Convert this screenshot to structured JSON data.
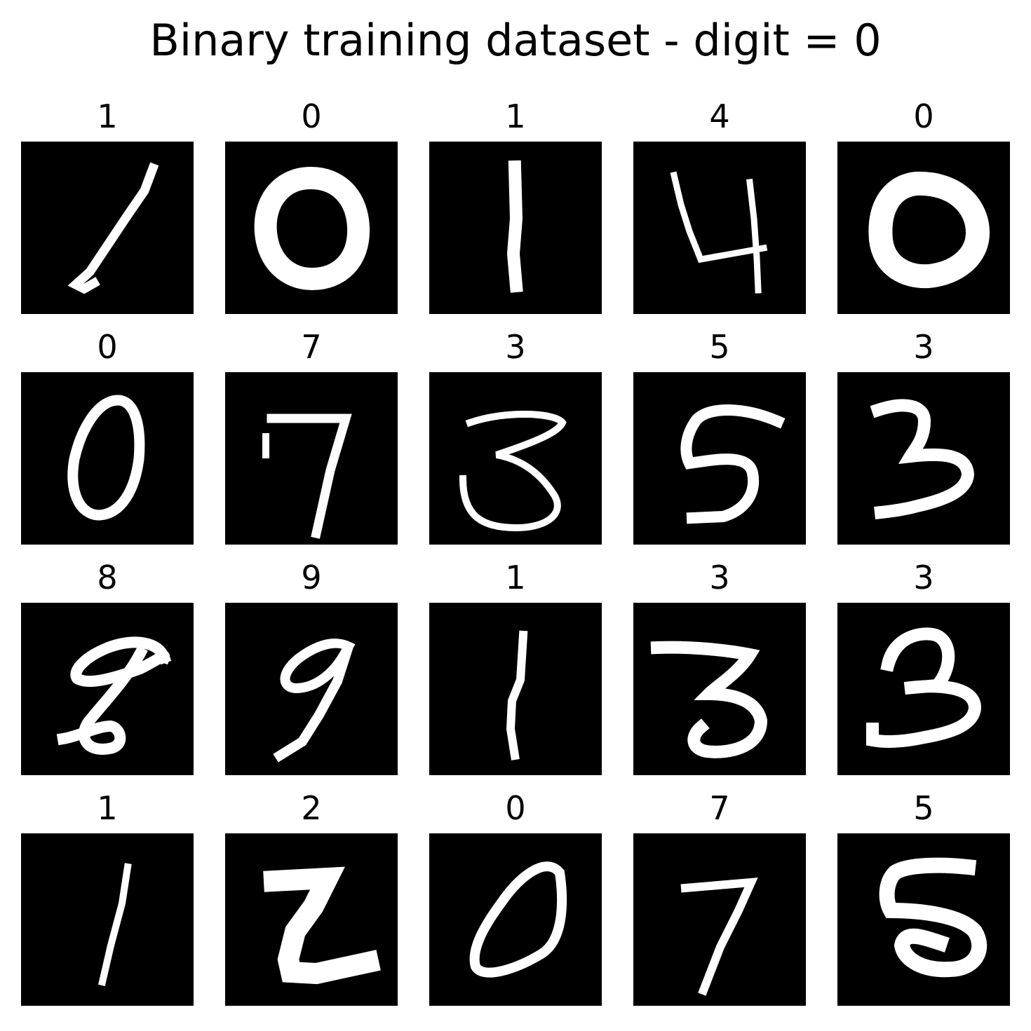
{
  "figure": {
    "title": "Binary training dataset - digit = 0"
  },
  "colors": {
    "background": "#ffffff",
    "image_background": "#000000",
    "stroke": "#ffffff"
  },
  "samples": [
    {
      "label": "1",
      "digit_icon": "handwritten-1-icon"
    },
    {
      "label": "0",
      "digit_icon": "handwritten-0-icon"
    },
    {
      "label": "1",
      "digit_icon": "handwritten-1-icon"
    },
    {
      "label": "4",
      "digit_icon": "handwritten-4-icon"
    },
    {
      "label": "0",
      "digit_icon": "handwritten-0-icon"
    },
    {
      "label": "0",
      "digit_icon": "handwritten-0-icon"
    },
    {
      "label": "7",
      "digit_icon": "handwritten-7-icon"
    },
    {
      "label": "3",
      "digit_icon": "handwritten-3-icon"
    },
    {
      "label": "5",
      "digit_icon": "handwritten-5-icon"
    },
    {
      "label": "3",
      "digit_icon": "handwritten-3-icon"
    },
    {
      "label": "8",
      "digit_icon": "handwritten-8-icon"
    },
    {
      "label": "9",
      "digit_icon": "handwritten-9-icon"
    },
    {
      "label": "1",
      "digit_icon": "handwritten-1-icon"
    },
    {
      "label": "3",
      "digit_icon": "handwritten-3-icon"
    },
    {
      "label": "3",
      "digit_icon": "handwritten-3-icon"
    },
    {
      "label": "1",
      "digit_icon": "handwritten-1-icon"
    },
    {
      "label": "2",
      "digit_icon": "handwritten-2-icon"
    },
    {
      "label": "0",
      "digit_icon": "handwritten-0-icon"
    },
    {
      "label": "7",
      "digit_icon": "handwritten-7-icon"
    },
    {
      "label": "5",
      "digit_icon": "handwritten-5-icon"
    }
  ]
}
